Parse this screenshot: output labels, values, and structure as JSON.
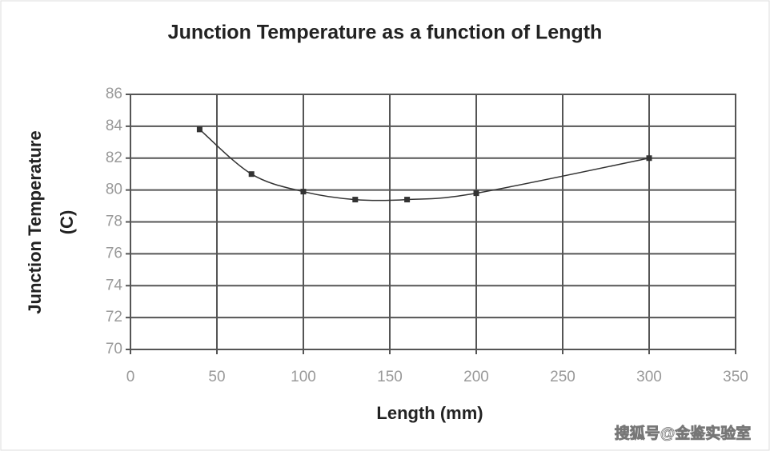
{
  "chart_data": {
    "type": "line",
    "title": "Junction Temperature as a function of Length",
    "xlabel": "Length (mm)",
    "ylabel": [
      "Junction Temperature",
      "(C)"
    ],
    "x": [
      40,
      70,
      100,
      130,
      160,
      200,
      300
    ],
    "series": [
      {
        "name": "Junction Temperature",
        "color": "#333333",
        "values": [
          83.8,
          81,
          79.9,
          79.4,
          79.4,
          79.8,
          82
        ]
      }
    ],
    "xlim": [
      0,
      350
    ],
    "xticks": [
      0,
      50,
      100,
      150,
      200,
      250,
      300,
      350
    ],
    "ylim": [
      70,
      86
    ],
    "yticks": [
      70,
      72,
      74,
      76,
      78,
      80,
      82,
      84,
      86
    ],
    "grid": true,
    "smooth": true
  },
  "watermark": "搜狐号@金鉴实验室"
}
